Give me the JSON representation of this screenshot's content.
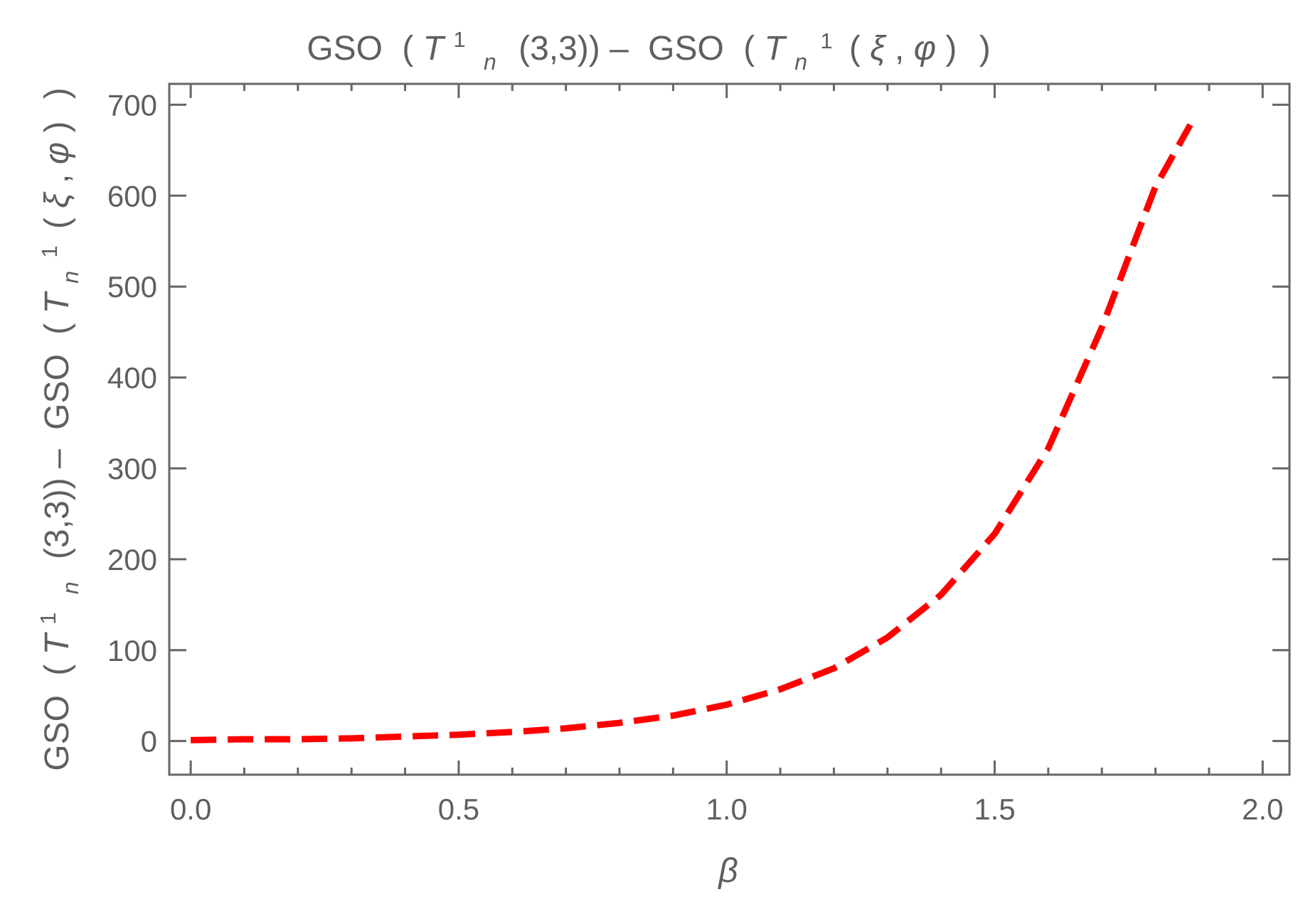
{
  "chart_data": {
    "type": "line",
    "title": {
      "prefix": "GSO",
      "open_group_1": "(",
      "T_symbol": "T",
      "superscript_1": "1",
      "subscript_n": "n",
      "first_args": "(3,3))",
      "minus": "–",
      "second_gso": "GSO",
      "open_group_2": "(",
      "second_T": "T",
      "second_subscript": "n",
      "second_superscript": "1",
      "second_open": "(",
      "xi": "ξ",
      "comma": ", ",
      "phi": "φ",
      "second_close": ")",
      "final_close": ")"
    },
    "xlabel": "β",
    "ylabel": {
      "prefix": "GSO",
      "open_group_1": "(",
      "T_symbol": "T",
      "superscript_1": "1",
      "subscript_n": "n",
      "first_args": "(3,3))",
      "minus": "–",
      "second_gso": "GSO",
      "open_group_2": "(",
      "second_T": "T",
      "second_subscript": "n",
      "second_superscript": "1",
      "second_open": "(",
      "xi": "ξ",
      "comma": ", ",
      "phi": "φ",
      "second_close": ")",
      "final_close": ")"
    },
    "xlim": [
      -0.04,
      2.05
    ],
    "ylim": [
      -37,
      723
    ],
    "x_ticks": [
      {
        "value": 0.0,
        "label": "0.0"
      },
      {
        "value": 0.5,
        "label": "0.5"
      },
      {
        "value": 1.0,
        "label": "1.0"
      },
      {
        "value": 1.5,
        "label": "1.5"
      },
      {
        "value": 2.0,
        "label": "2.0"
      }
    ],
    "y_ticks": [
      {
        "value": 0,
        "label": "0"
      },
      {
        "value": 100,
        "label": "100"
      },
      {
        "value": 200,
        "label": "200"
      },
      {
        "value": 300,
        "label": "300"
      },
      {
        "value": 400,
        "label": "400"
      },
      {
        "value": 500,
        "label": "500"
      },
      {
        "value": 600,
        "label": "600"
      },
      {
        "value": 700,
        "label": "700"
      }
    ],
    "x_minor_ticks": [
      0.1,
      0.2,
      0.3,
      0.4,
      0.6,
      0.7,
      0.8,
      0.9,
      1.1,
      1.2,
      1.3,
      1.4,
      1.6,
      1.7,
      1.8,
      1.9
    ],
    "y_minor_ticks": [],
    "grid": false,
    "series": [
      {
        "color": "#ff0000",
        "line_style": "dashed",
        "points": [
          {
            "x": 0.0,
            "y": 1
          },
          {
            "x": 0.1,
            "y": 2
          },
          {
            "x": 0.2,
            "y": 2
          },
          {
            "x": 0.3,
            "y": 3
          },
          {
            "x": 0.4,
            "y": 5
          },
          {
            "x": 0.5,
            "y": 7
          },
          {
            "x": 0.6,
            "y": 10
          },
          {
            "x": 0.7,
            "y": 14
          },
          {
            "x": 0.8,
            "y": 20
          },
          {
            "x": 0.9,
            "y": 28
          },
          {
            "x": 1.0,
            "y": 40
          },
          {
            "x": 1.1,
            "y": 57
          },
          {
            "x": 1.2,
            "y": 80
          },
          {
            "x": 1.3,
            "y": 114
          },
          {
            "x": 1.4,
            "y": 161
          },
          {
            "x": 1.5,
            "y": 228
          },
          {
            "x": 1.6,
            "y": 322
          },
          {
            "x": 1.7,
            "y": 455
          },
          {
            "x": 1.8,
            "y": 610
          },
          {
            "x": 1.865,
            "y": 678
          }
        ]
      }
    ]
  }
}
